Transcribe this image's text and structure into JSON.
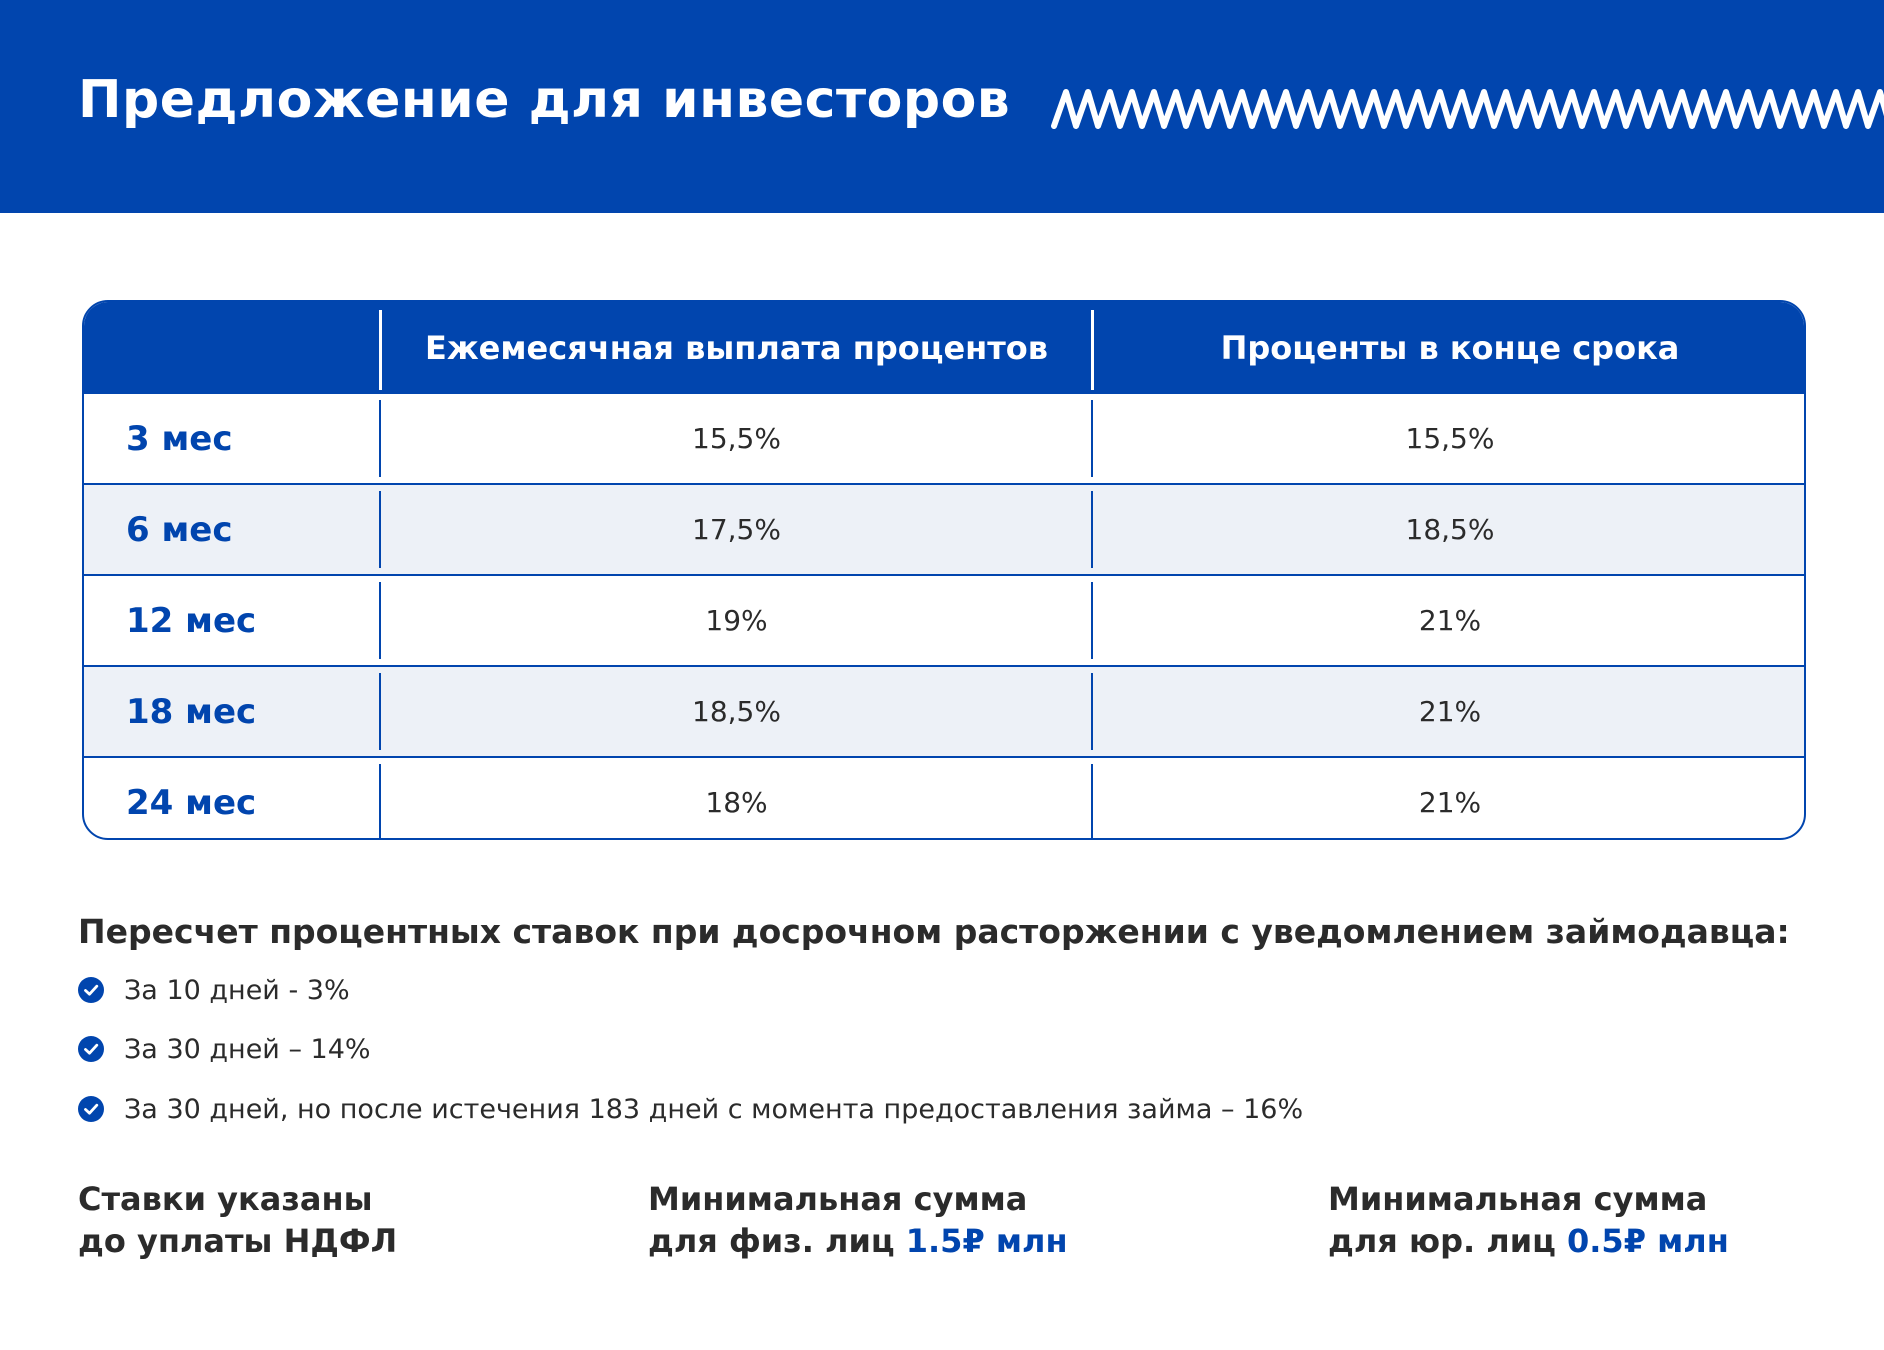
{
  "header": {
    "title": "Предложение для инвесторов",
    "bg_color": "#0145ae",
    "decoration_icon": "zigzag-pattern-icon"
  },
  "table": {
    "columns": [
      "",
      "Ежемесячная выплата процентов",
      "Проценты в конце срока"
    ],
    "rows": [
      {
        "term": "3 мес",
        "monthly": "15,5%",
        "end": "15,5%"
      },
      {
        "term": "6 мес",
        "monthly": "17,5%",
        "end": "18,5%"
      },
      {
        "term": "12 мес",
        "monthly": "19%",
        "end": "21%"
      },
      {
        "term": "18 мес",
        "monthly": "18,5%",
        "end": "21%"
      },
      {
        "term": "24 мес",
        "monthly": "18%",
        "end": "21%"
      }
    ],
    "accent_color": "#0145ae",
    "alt_row_color": "#edf1f7"
  },
  "recalc": {
    "heading": "Пересчет процентных ставок при досрочном расторжении с уведомлением займодавца:",
    "icon": "check-circle-icon",
    "items": [
      "За 10 дней - 3%",
      "За 30 дней – 14%",
      "За 30 дней, но после истечения 183 дней с момента предоставления займа – 16%"
    ]
  },
  "footer": {
    "tax": {
      "line1": "Ставки указаны",
      "line2": "до уплаты НДФЛ"
    },
    "individuals": {
      "line1": "Минимальная сумма",
      "line2_prefix": "для физ. лиц",
      "amount": "1.5₽ млн"
    },
    "legal": {
      "line1": "Минимальная сумма",
      "line2_prefix": "для юр. лиц",
      "amount": "0.5₽ млн"
    }
  }
}
